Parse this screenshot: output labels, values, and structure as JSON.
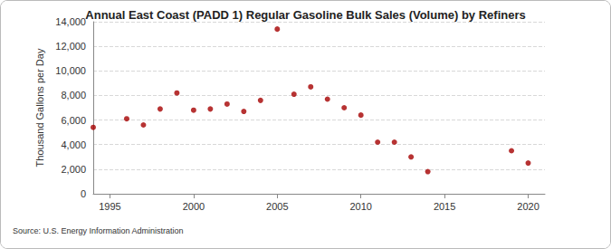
{
  "chart_data": {
    "type": "scatter",
    "title": "Annual East Coast (PADD 1) Regular Gasoline Bulk Sales (Volume) by Refiners",
    "y_label": "Thousand Gallons per Day",
    "source": "Source: U.S. Energy Information Administration",
    "x": [
      1994,
      1996,
      1997,
      1998,
      1999,
      2000,
      2001,
      2002,
      2003,
      2004,
      2005,
      2006,
      2007,
      2008,
      2009,
      2010,
      2011,
      2012,
      2013,
      2014,
      2019,
      2020
    ],
    "values": [
      5400,
      6100,
      5600,
      6900,
      8200,
      6800,
      6900,
      7300,
      6700,
      7600,
      13400,
      8100,
      8700,
      7700,
      7000,
      6400,
      4200,
      4200,
      3000,
      1800,
      3500,
      2500
    ],
    "color": "#a50000",
    "marker": "circle",
    "xlim": [
      1994,
      2021
    ],
    "xticks": [
      1995,
      2000,
      2005,
      2010,
      2015,
      2020
    ],
    "ylim": [
      0,
      14000
    ],
    "yticks": [
      0,
      {
        "value": 2000,
        "label": "2,000"
      },
      {
        "value": 4000,
        "label": "4,000"
      },
      {
        "value": 6000,
        "label": "6,000"
      },
      {
        "value": 8000,
        "label": "8,000"
      },
      {
        "value": 10000,
        "label": "10,000"
      },
      {
        "value": 12000,
        "label": "12,000"
      },
      {
        "value": 14000,
        "label": "14,000"
      }
    ],
    "grid": true
  }
}
